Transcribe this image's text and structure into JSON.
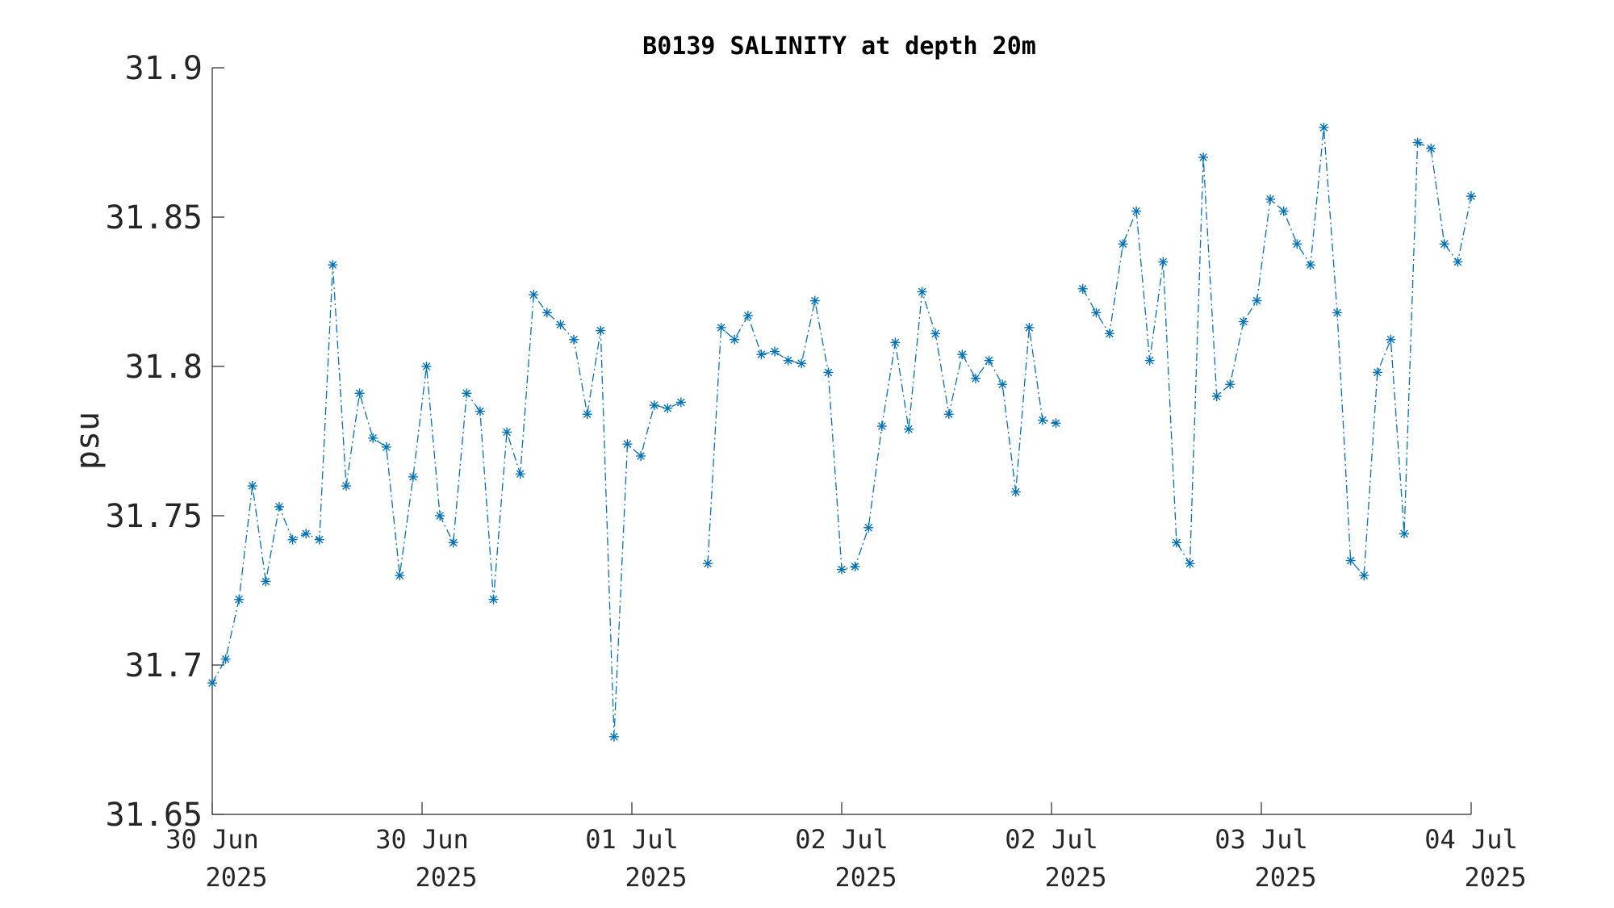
{
  "chart_data": {
    "type": "line",
    "title": "B0139 SALINITY at depth 20m",
    "xlabel": "",
    "ylabel": "psu",
    "ylim": [
      31.65,
      31.9
    ],
    "yticks": [
      "31.65",
      "31.7",
      "31.75",
      "31.8",
      "31.85",
      "31.9"
    ],
    "xticks": [
      {
        "l1": "30 Jun",
        "l2": "2025"
      },
      {
        "l1": "30 Jun",
        "l2": "2025"
      },
      {
        "l1": "01 Jul",
        "l2": "2025"
      },
      {
        "l1": "02 Jul",
        "l2": "2025"
      },
      {
        "l1": "02 Jul",
        "l2": "2025"
      },
      {
        "l1": "03 Jul",
        "l2": "2025"
      },
      {
        "l1": "04 Jul",
        "l2": "2025"
      }
    ],
    "grid": false,
    "line_style": "dash-dot",
    "marker": "asterisk",
    "color": "#0072BD",
    "series": [
      {
        "values": [
          31.694,
          31.702,
          31.722,
          31.76,
          31.728,
          31.753,
          31.742,
          31.744,
          31.742,
          31.834,
          31.76,
          31.791,
          31.776,
          31.773,
          31.73,
          31.763,
          31.8,
          31.75,
          31.741,
          31.791,
          31.785,
          31.722,
          31.778,
          31.764,
          31.824,
          31.818,
          31.814,
          31.809,
          31.784,
          31.812,
          31.676,
          31.774,
          31.77,
          31.787,
          31.786,
          31.788,
          null,
          31.734,
          31.813,
          31.809,
          31.817,
          31.804,
          31.805,
          31.802,
          31.801,
          31.822,
          31.798,
          31.732,
          31.733,
          31.746,
          31.78,
          31.808,
          31.779,
          31.825,
          31.811,
          31.784,
          31.804,
          31.796,
          31.802,
          31.794,
          31.758,
          31.813,
          31.782,
          31.781,
          null,
          31.826,
          31.818,
          31.811,
          31.841,
          31.852,
          31.802,
          31.835,
          31.741,
          31.734,
          31.87,
          31.79,
          31.794,
          31.815,
          31.822,
          31.856,
          31.852,
          31.841,
          31.834,
          31.88,
          31.818,
          31.735,
          31.73,
          31.798,
          31.809,
          31.744,
          31.875,
          31.873,
          31.841,
          31.835,
          31.857
        ]
      }
    ]
  }
}
